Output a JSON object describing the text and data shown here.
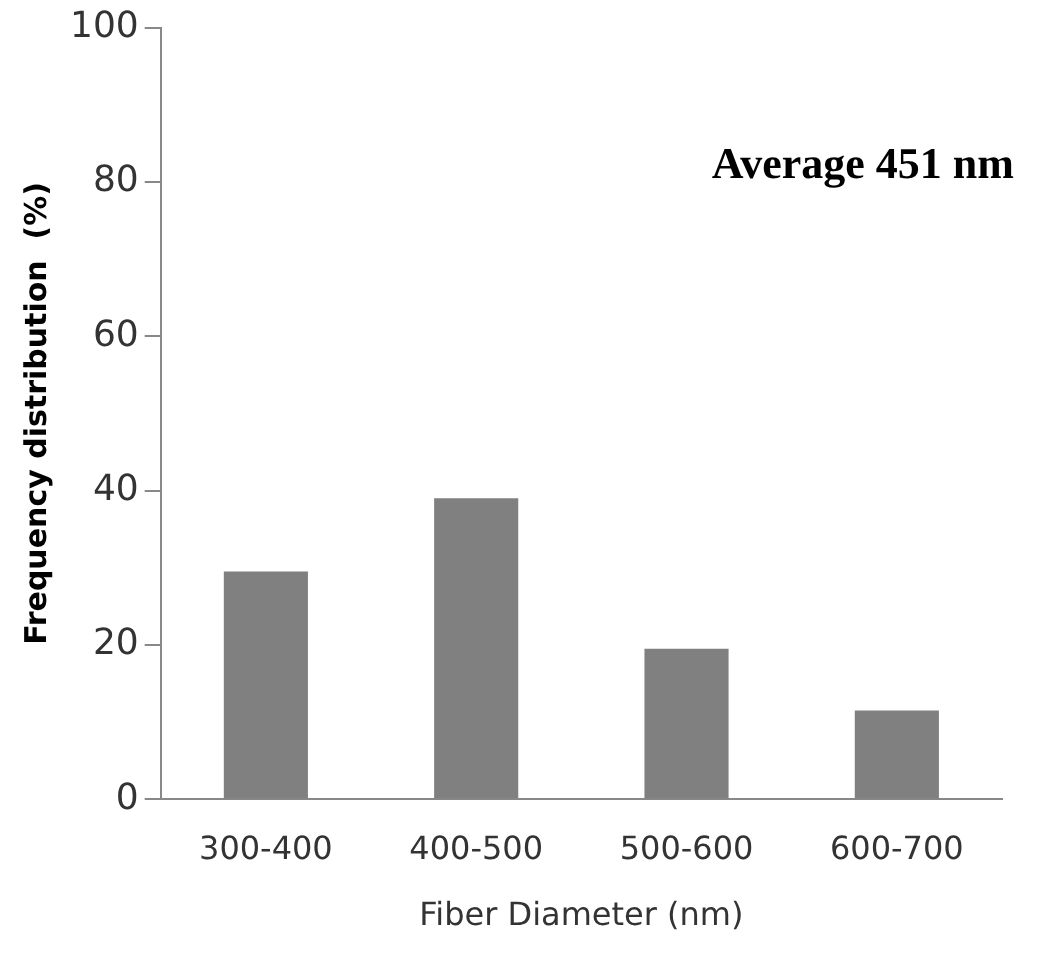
{
  "chart_data": {
    "type": "bar",
    "xlabel": "Fiber Diameter (nm)",
    "ylabel": "Frequency distribution  (%)",
    "categories": [
      "300-400",
      "400-500",
      "500-600",
      "600-700"
    ],
    "values": [
      29.5,
      39,
      19.5,
      11.5
    ],
    "color": "#808080",
    "ylim": [
      0,
      100
    ],
    "yticks": [
      0,
      20,
      40,
      60,
      80,
      100
    ],
    "annotations": [
      "Average 451 nm"
    ]
  }
}
